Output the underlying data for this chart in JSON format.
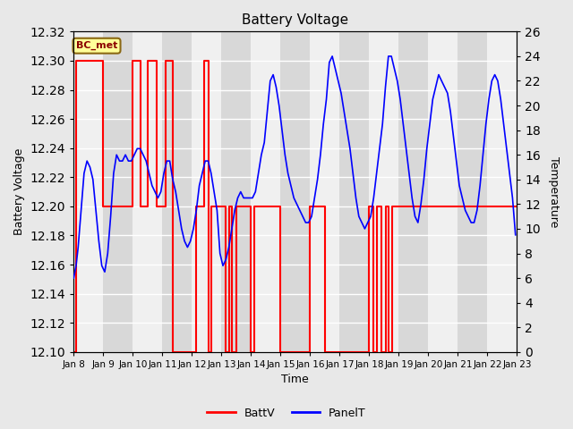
{
  "title": "Battery Voltage",
  "xlabel": "Time",
  "ylabel_left": "Battery Voltage",
  "ylabel_right": "Temperature",
  "bg_color": "#e8e8e8",
  "plot_bg_color": "#f0f0f0",
  "annotation_text": "BC_met",
  "annotation_bg": "#ffff99",
  "annotation_border": "#8b6914",
  "xlim": [
    0,
    15
  ],
  "ylim_left": [
    12.1,
    12.32
  ],
  "ylim_right": [
    0,
    26
  ],
  "yticks_left": [
    12.1,
    12.12,
    12.14,
    12.16,
    12.18,
    12.2,
    12.22,
    12.24,
    12.26,
    12.28,
    12.3,
    12.32
  ],
  "yticks_right": [
    0,
    2,
    4,
    6,
    8,
    10,
    12,
    14,
    16,
    18,
    20,
    22,
    24,
    26
  ],
  "xtick_labels": [
    "Jan 8",
    "Jan 9",
    "Jan 10",
    "Jan 11",
    "Jan 12",
    "Jan 13",
    "Jan 14",
    "Jan 15",
    "Jan 16",
    "Jan 17",
    "Jan 18",
    "Jan 19",
    "Jan 20",
    "Jan 21",
    "Jan 22",
    "Jan 23"
  ],
  "battv_color": "#ff0000",
  "panelt_color": "#0000ff",
  "legend_battv": "BattV",
  "legend_panelt": "PanelT",
  "shade_bands": [
    [
      1,
      2
    ],
    [
      3,
      4
    ],
    [
      5,
      6
    ],
    [
      7,
      8
    ],
    [
      9,
      10
    ],
    [
      11,
      12
    ],
    [
      13,
      14
    ]
  ],
  "shade_color": "#d8d8d8",
  "battv_x": [
    0.0,
    0.08,
    0.08,
    1.0,
    1.0,
    2.0,
    2.0,
    2.25,
    2.25,
    2.5,
    2.5,
    2.8,
    2.8,
    3.1,
    3.1,
    3.35,
    3.35,
    4.15,
    4.15,
    4.4,
    4.4,
    4.55,
    4.55,
    4.67,
    4.67,
    5.15,
    5.15,
    5.25,
    5.25,
    5.35,
    5.35,
    5.5,
    5.5,
    6.0,
    6.0,
    6.1,
    6.1,
    7.0,
    7.0,
    8.0,
    8.0,
    8.5,
    8.5,
    10.0,
    10.0,
    10.15,
    10.15,
    10.27,
    10.27,
    10.42,
    10.42,
    10.55,
    10.55,
    10.67,
    10.67,
    10.78,
    10.78,
    15.0
  ],
  "battv_y": [
    12.1,
    12.1,
    12.3,
    12.3,
    12.2,
    12.2,
    12.3,
    12.3,
    12.2,
    12.2,
    12.3,
    12.3,
    12.2,
    12.2,
    12.3,
    12.3,
    12.1,
    12.1,
    12.2,
    12.2,
    12.3,
    12.3,
    12.1,
    12.1,
    12.2,
    12.2,
    12.1,
    12.1,
    12.2,
    12.2,
    12.1,
    12.1,
    12.2,
    12.2,
    12.1,
    12.1,
    12.2,
    12.2,
    12.1,
    12.1,
    12.2,
    12.2,
    12.1,
    12.1,
    12.2,
    12.2,
    12.1,
    12.1,
    12.2,
    12.2,
    12.1,
    12.1,
    12.2,
    12.2,
    12.1,
    12.1,
    12.2,
    12.2
  ],
  "panelt_x": [
    0.0,
    0.08,
    0.15,
    0.25,
    0.35,
    0.45,
    0.55,
    0.65,
    0.75,
    0.85,
    0.95,
    1.05,
    1.15,
    1.25,
    1.35,
    1.45,
    1.55,
    1.65,
    1.75,
    1.85,
    1.95,
    2.05,
    2.15,
    2.25,
    2.35,
    2.45,
    2.55,
    2.65,
    2.75,
    2.85,
    2.95,
    3.05,
    3.15,
    3.25,
    3.35,
    3.45,
    3.55,
    3.65,
    3.75,
    3.85,
    3.95,
    4.05,
    4.15,
    4.25,
    4.35,
    4.45,
    4.55,
    4.65,
    4.75,
    4.85,
    4.95,
    5.05,
    5.15,
    5.25,
    5.35,
    5.45,
    5.55,
    5.65,
    5.75,
    5.85,
    5.95,
    6.05,
    6.15,
    6.25,
    6.35,
    6.45,
    6.55,
    6.65,
    6.75,
    6.85,
    6.95,
    7.05,
    7.15,
    7.25,
    7.35,
    7.45,
    7.55,
    7.65,
    7.75,
    7.85,
    7.95,
    8.05,
    8.15,
    8.25,
    8.35,
    8.45,
    8.55,
    8.65,
    8.75,
    8.85,
    8.95,
    9.05,
    9.15,
    9.25,
    9.35,
    9.45,
    9.55,
    9.65,
    9.75,
    9.85,
    9.95,
    10.05,
    10.15,
    10.25,
    10.35,
    10.45,
    10.55,
    10.65,
    10.75,
    10.85,
    10.95,
    11.05,
    11.15,
    11.25,
    11.35,
    11.45,
    11.55,
    11.65,
    11.75,
    11.85,
    11.95,
    12.05,
    12.15,
    12.25,
    12.35,
    12.45,
    12.55,
    12.65,
    12.75,
    12.85,
    12.95,
    13.05,
    13.15,
    13.25,
    13.35,
    13.45,
    13.55,
    13.65,
    13.75,
    13.85,
    13.95,
    14.05,
    14.15,
    14.25,
    14.35,
    14.45,
    14.55,
    14.65,
    14.75,
    14.85,
    14.95
  ],
  "panelt_y": [
    6.0,
    7.0,
    8.5,
    11.5,
    14.5,
    15.5,
    15.0,
    14.0,
    11.5,
    9.0,
    7.0,
    6.5,
    8.0,
    11.0,
    14.5,
    16.0,
    15.5,
    15.5,
    16.0,
    15.5,
    15.5,
    16.0,
    16.5,
    16.5,
    16.0,
    15.5,
    14.5,
    13.5,
    13.0,
    12.5,
    13.0,
    14.5,
    15.5,
    15.5,
    14.0,
    13.0,
    11.5,
    10.0,
    9.0,
    8.5,
    9.0,
    10.0,
    11.5,
    13.5,
    14.5,
    15.5,
    15.5,
    14.5,
    13.0,
    11.5,
    8.0,
    7.0,
    7.5,
    8.5,
    10.0,
    11.5,
    12.5,
    13.0,
    12.5,
    12.5,
    12.5,
    12.5,
    13.0,
    14.5,
    16.0,
    17.0,
    19.5,
    22.0,
    22.5,
    21.5,
    20.0,
    18.0,
    16.0,
    14.5,
    13.5,
    12.5,
    12.0,
    11.5,
    11.0,
    10.5,
    10.5,
    11.0,
    12.5,
    14.0,
    16.0,
    18.5,
    20.5,
    23.5,
    24.0,
    23.0,
    22.0,
    21.0,
    19.5,
    18.0,
    16.5,
    14.5,
    12.5,
    11.0,
    10.5,
    10.0,
    10.5,
    11.0,
    12.5,
    14.5,
    16.5,
    18.5,
    21.5,
    24.0,
    24.0,
    23.0,
    22.0,
    20.5,
    18.5,
    16.5,
    14.5,
    12.5,
    11.0,
    10.5,
    12.0,
    14.0,
    16.5,
    18.5,
    20.5,
    21.5,
    22.5,
    22.0,
    21.5,
    21.0,
    19.5,
    17.5,
    15.5,
    13.5,
    12.5,
    11.5,
    11.0,
    10.5,
    10.5,
    11.5,
    13.5,
    16.0,
    18.5,
    20.5,
    22.0,
    22.5,
    22.0,
    20.5,
    18.5,
    16.5,
    14.5,
    12.5,
    9.5
  ]
}
